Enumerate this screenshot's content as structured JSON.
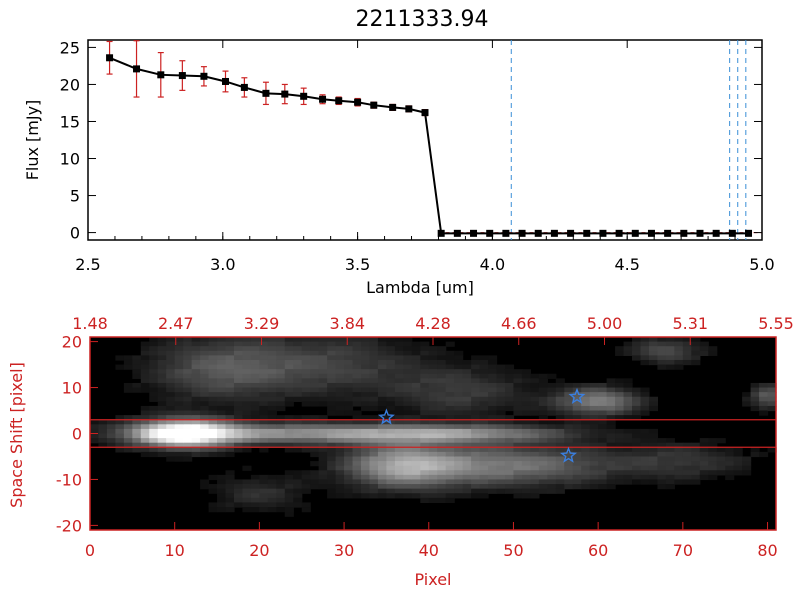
{
  "chart_data": [
    {
      "type": "line",
      "title": "2211333.94",
      "xlabel": "Lambda [um]",
      "ylabel": "Flux [mJy]",
      "xlim": [
        2.5,
        5.0
      ],
      "ylim": [
        -1,
        26
      ],
      "xticks": [
        "2.5",
        "3.0",
        "3.5",
        "4.0",
        "4.5",
        "5.0"
      ],
      "yticks": [
        "0",
        "5",
        "10",
        "15",
        "20",
        "25"
      ],
      "x": [
        2.58,
        2.68,
        2.77,
        2.85,
        2.93,
        3.01,
        3.08,
        3.16,
        3.23,
        3.3,
        3.37,
        3.43,
        3.5,
        3.56,
        3.63,
        3.69,
        3.75,
        3.81,
        3.87,
        3.93,
        3.99,
        4.05,
        4.11,
        4.17,
        4.23,
        4.29,
        4.35,
        4.41,
        4.47,
        4.53,
        4.59,
        4.65,
        4.71,
        4.77,
        4.83,
        4.89,
        4.95
      ],
      "flux": [
        23.6,
        22.1,
        21.3,
        21.2,
        21.1,
        20.4,
        19.6,
        18.8,
        18.7,
        18.4,
        18.0,
        17.8,
        17.6,
        17.2,
        16.9,
        16.7,
        16.2,
        -0.1,
        -0.1,
        -0.1,
        -0.1,
        -0.1,
        -0.1,
        -0.1,
        -0.1,
        -0.1,
        -0.1,
        -0.1,
        -0.1,
        -0.1,
        -0.1,
        -0.1,
        -0.1,
        -0.1,
        -0.1,
        -0.1,
        -0.1
      ],
      "error": [
        2.2,
        3.8,
        3.0,
        2.0,
        1.3,
        1.4,
        1.3,
        1.5,
        1.3,
        1.1,
        0.6,
        0.5,
        0.5,
        0.4,
        0.4,
        0.4,
        0.4,
        0.2,
        0.2,
        0.2,
        0.2,
        0.2,
        0.2,
        0.2,
        0.2,
        0.2,
        0.2,
        0.2,
        0.2,
        0.2,
        0.2,
        0.2,
        0.2,
        0.2,
        0.2,
        0.2,
        0.2
      ],
      "vlines": [
        4.07,
        4.88,
        4.91,
        4.94
      ],
      "colors": {
        "line": "#000000",
        "marker": "#000000",
        "error": "#cc2222",
        "vline": "#3a8fd6"
      }
    },
    {
      "type": "heatmap",
      "xlabel": "Pixel",
      "ylabel": "Space Shift [pixel]",
      "xlim": [
        0,
        81
      ],
      "ylim": [
        -21,
        21
      ],
      "xticks": [
        "0",
        "10",
        "20",
        "30",
        "40",
        "50",
        "60",
        "70",
        "80"
      ],
      "yticks": [
        "-20",
        "-10",
        "0",
        "10",
        "20"
      ],
      "top_axis_ticks": [
        "1.48",
        "2.47",
        "3.29",
        "3.84",
        "4.28",
        "4.66",
        "5.00",
        "5.31",
        "5.55"
      ],
      "hlines": [
        3,
        -3
      ],
      "stars": [
        {
          "x": 35,
          "y": 3.5
        },
        {
          "x": 57.5,
          "y": 8
        },
        {
          "x": 56.5,
          "y": -4.8
        }
      ],
      "blobs": [
        {
          "x": 11,
          "y": 0,
          "sx": 4,
          "sy": 2.2,
          "v": 1.0
        },
        {
          "x": 25,
          "y": 0,
          "sx": 14,
          "sy": 1.6,
          "v": 0.55
        },
        {
          "x": 45,
          "y": 0,
          "sx": 9,
          "sy": 1.3,
          "v": 0.35
        },
        {
          "x": 37,
          "y": -7,
          "sx": 5,
          "sy": 3.5,
          "v": 0.6
        },
        {
          "x": 50,
          "y": -7,
          "sx": 8,
          "sy": 3.2,
          "v": 0.45
        },
        {
          "x": 15,
          "y": 14,
          "sx": 6,
          "sy": 5,
          "v": 0.3
        },
        {
          "x": 28,
          "y": 15,
          "sx": 8,
          "sy": 5,
          "v": 0.25
        },
        {
          "x": 44,
          "y": 9,
          "sx": 6,
          "sy": 4,
          "v": 0.22
        },
        {
          "x": 60,
          "y": 7,
          "sx": 3.5,
          "sy": 2.2,
          "v": 0.5
        },
        {
          "x": 68,
          "y": 18,
          "sx": 3,
          "sy": 2,
          "v": 0.3
        },
        {
          "x": 80,
          "y": 8,
          "sx": 1.5,
          "sy": 2,
          "v": 0.35
        },
        {
          "x": 20,
          "y": -13,
          "sx": 4,
          "sy": 3,
          "v": 0.18
        },
        {
          "x": 70,
          "y": -6,
          "sx": 6,
          "sy": 3,
          "v": 0.2
        }
      ],
      "colors": {
        "axis": "#cc2222",
        "hline": "#cc2222",
        "star": "#3a7fe0"
      }
    }
  ]
}
